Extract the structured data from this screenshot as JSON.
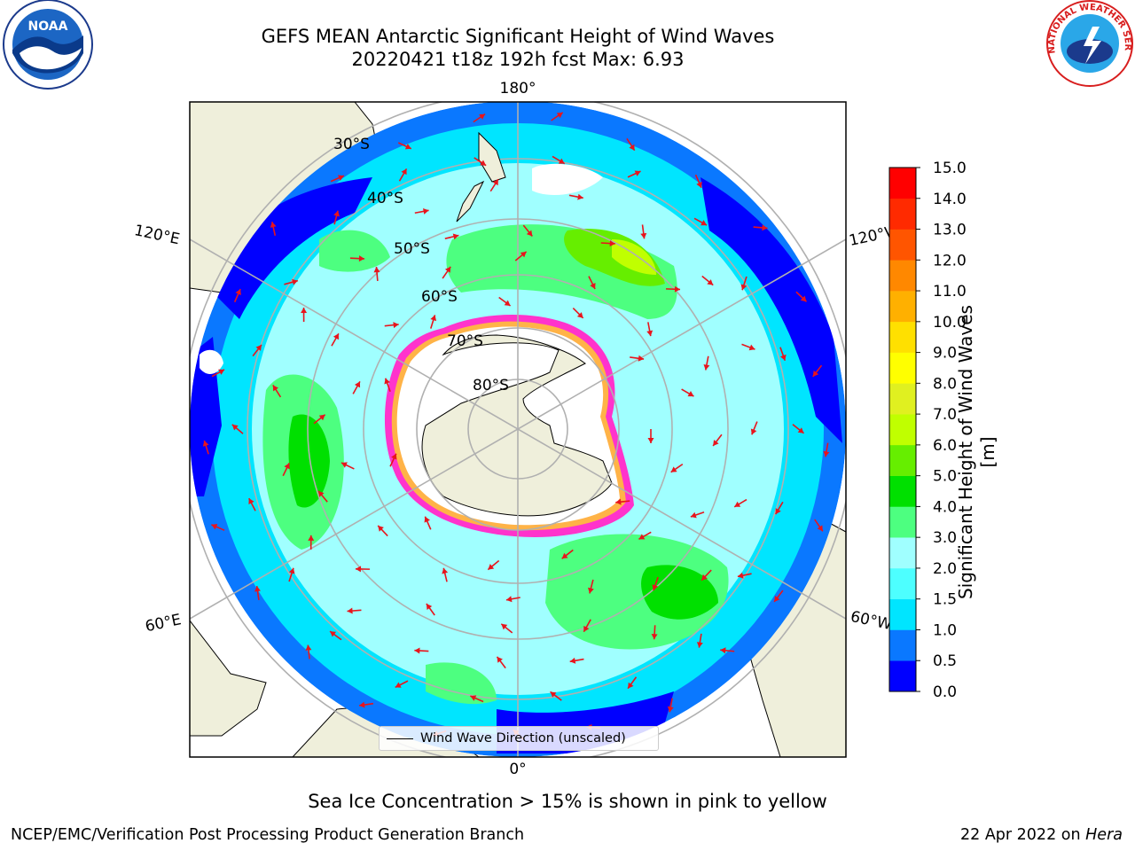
{
  "title": {
    "line1": "GEFS MEAN Antarctic Significant Height of Wind Waves",
    "line2": "20220421 t18z 192h fcst   Max: 6.93"
  },
  "map": {
    "projection": "south-polar-stereographic",
    "longitude_labels": [
      "180°",
      "120°E",
      "120°W",
      "60°E",
      "60°W",
      "0°"
    ],
    "latitude_labels": [
      "30°S",
      "40°S",
      "50°S",
      "60°S",
      "70°S",
      "80°S"
    ],
    "legend_label": "Wind Wave Direction (unscaled)",
    "arrow_color": "#e8141c",
    "land_color": "#efefdb",
    "ice_edge_colors": [
      "#ff33cc",
      "#ffb347",
      "#ffee55"
    ]
  },
  "colorbar": {
    "label": "Significant Height of Wind Waves [m]",
    "ticks": [
      "0.0",
      "0.5",
      "1.0",
      "1.5",
      "2.0",
      "3.0",
      "4.0",
      "5.0",
      "6.0",
      "7.0",
      "8.0",
      "9.0",
      "10.0",
      "11.0",
      "12.0",
      "13.0",
      "14.0",
      "15.0"
    ],
    "colors": [
      "#0000ff",
      "#0a78ff",
      "#00e5ff",
      "#4dffff",
      "#a0ffff",
      "#4dff80",
      "#00e000",
      "#66ee00",
      "#c0ff00",
      "#e0f020",
      "#ffff00",
      "#ffe000",
      "#ffb000",
      "#ff8800",
      "#ff5500",
      "#ff2a00",
      "#ff0000"
    ]
  },
  "footnote": "Sea Ice Concentration > 15% is shown in pink to yellow",
  "credit": "NCEP/EMC/Verification Post Processing Product Generation Branch",
  "date_prefix": "22 Apr 2022 on ",
  "date_machine": "Hera",
  "logos": {
    "noaa": "NOAA",
    "nws": "NATIONAL WEATHER SERVICE"
  }
}
